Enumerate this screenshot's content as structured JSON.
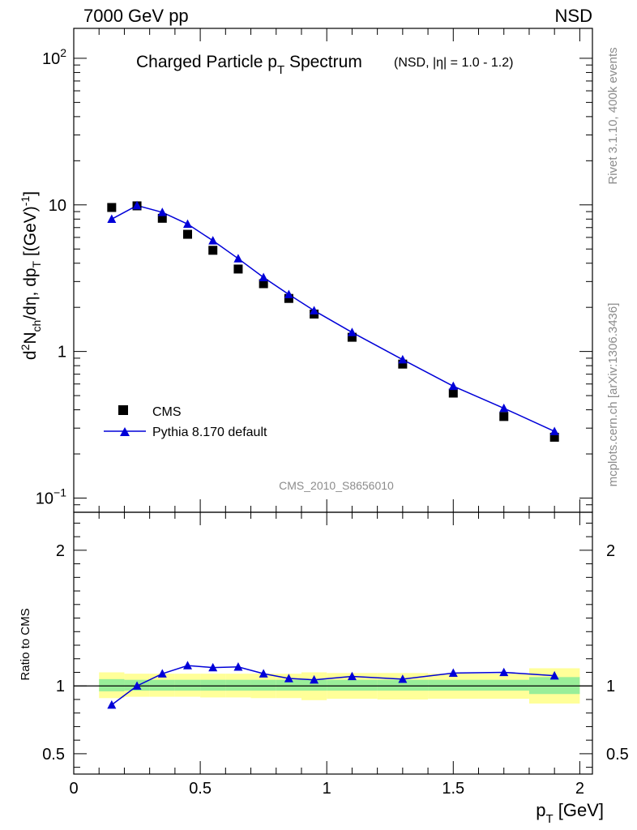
{
  "header": {
    "left": "7000 GeV pp",
    "right": "NSD"
  },
  "side_labels": {
    "rivet": "Rivet 3.1.10,  400k events",
    "mcplots": "mcplots.cern.ch [arXiv:1306.3436]"
  },
  "watermark": "CMS_2010_S8656010",
  "colors": {
    "mc": "#0000d8",
    "data": "#000000",
    "band_inner": "#99ee99",
    "band_outer": "#ffff99"
  },
  "chart_data": [
    {
      "type": "scatter",
      "title": "Charged Particle p_T Spectrum",
      "title_main": "Charged Particle p",
      "title_sub": "T",
      "title_tail": " Spectrum",
      "subtitle": "(NSD, |η| = 1.0 - 1.2)",
      "ylabel": "d²N_ch/dη, dp_T [(GeV)⁻¹]",
      "ylabel_parts": {
        "d": "d",
        "sup2": "2",
        "N": "N",
        "ch": "ch",
        "mid": "/dη, dp",
        "T": "T",
        "br": " [(GeV)",
        "m1": "-1",
        "close": "]"
      },
      "yscale": "log",
      "ylim": [
        0.08,
        160
      ],
      "xlim": [
        0,
        2.05
      ],
      "yticks": [
        {
          "v": 100,
          "base": "10",
          "exp": "2"
        },
        {
          "v": 10,
          "base": "10",
          "exp": ""
        },
        {
          "v": 1,
          "base": "1",
          "exp": ""
        },
        {
          "v": 0.1,
          "base": "10",
          "exp": "−1"
        }
      ],
      "legend": {
        "position": "bottom-left",
        "data_label": "CMS",
        "mc_label": "Pythia 8.170 default"
      },
      "series": [
        {
          "name": "CMS",
          "x": [
            0.15,
            0.25,
            0.35,
            0.45,
            0.55,
            0.65,
            0.75,
            0.85,
            0.95,
            1.1,
            1.3,
            1.5,
            1.7,
            1.9
          ],
          "values": [
            9.6,
            9.85,
            8.1,
            6.3,
            4.9,
            3.65,
            2.9,
            2.3,
            1.8,
            1.25,
            0.82,
            0.52,
            0.36,
            0.26
          ]
        },
        {
          "name": "Pythia 8.170 default",
          "x": [
            0.15,
            0.25,
            0.35,
            0.45,
            0.55,
            0.65,
            0.75,
            0.85,
            0.95,
            1.1,
            1.3,
            1.5,
            1.7,
            1.9
          ],
          "values": [
            8.0,
            9.9,
            8.9,
            7.4,
            5.7,
            4.3,
            3.2,
            2.45,
            1.9,
            1.35,
            0.88,
            0.58,
            0.41,
            0.285
          ]
        }
      ]
    },
    {
      "type": "line",
      "ylabel": "Ratio to CMS",
      "xlabel": "p_T [GeV]",
      "xlabel_main": "p",
      "xlabel_sub": "T",
      "xlabel_tail": " [GeV]",
      "ylim": [
        0.35,
        2.28
      ],
      "xlim": [
        0,
        2.05
      ],
      "yticks": [
        {
          "v": 0.5,
          "label": "0.5"
        },
        {
          "v": 1,
          "label": "1"
        },
        {
          "v": 2,
          "label": "2"
        }
      ],
      "xticks": [
        {
          "v": 0,
          "label": "0"
        },
        {
          "v": 0.5,
          "label": "0.5"
        },
        {
          "v": 1,
          "label": "1"
        },
        {
          "v": 1.5,
          "label": "1.5"
        },
        {
          "v": 2,
          "label": "2"
        }
      ],
      "bands": [
        {
          "x0": 0.1,
          "x1": 0.2,
          "inner": [
            0.96,
            1.05
          ],
          "outer": [
            0.91,
            1.1
          ]
        },
        {
          "x0": 0.2,
          "x1": 0.3,
          "inner": [
            0.965,
            1.045
          ],
          "outer": [
            0.92,
            1.09
          ]
        },
        {
          "x0": 0.3,
          "x1": 0.4,
          "inner": [
            0.965,
            1.045
          ],
          "outer": [
            0.92,
            1.09
          ]
        },
        {
          "x0": 0.4,
          "x1": 0.5,
          "inner": [
            0.965,
            1.045
          ],
          "outer": [
            0.92,
            1.09
          ]
        },
        {
          "x0": 0.5,
          "x1": 0.6,
          "inner": [
            0.965,
            1.045
          ],
          "outer": [
            0.915,
            1.09
          ]
        },
        {
          "x0": 0.6,
          "x1": 0.7,
          "inner": [
            0.965,
            1.045
          ],
          "outer": [
            0.915,
            1.09
          ]
        },
        {
          "x0": 0.7,
          "x1": 0.8,
          "inner": [
            0.965,
            1.045
          ],
          "outer": [
            0.91,
            1.09
          ]
        },
        {
          "x0": 0.8,
          "x1": 0.9,
          "inner": [
            0.965,
            1.045
          ],
          "outer": [
            0.91,
            1.09
          ]
        },
        {
          "x0": 0.9,
          "x1": 1.0,
          "inner": [
            0.965,
            1.045
          ],
          "outer": [
            0.895,
            1.1
          ]
        },
        {
          "x0": 1.0,
          "x1": 1.2,
          "inner": [
            0.965,
            1.045
          ],
          "outer": [
            0.905,
            1.095
          ]
        },
        {
          "x0": 1.2,
          "x1": 1.4,
          "inner": [
            0.965,
            1.045
          ],
          "outer": [
            0.9,
            1.095
          ]
        },
        {
          "x0": 1.4,
          "x1": 1.6,
          "inner": [
            0.965,
            1.045
          ],
          "outer": [
            0.905,
            1.09
          ]
        },
        {
          "x0": 1.6,
          "x1": 1.8,
          "inner": [
            0.965,
            1.045
          ],
          "outer": [
            0.905,
            1.09
          ]
        },
        {
          "x0": 1.8,
          "x1": 2.0,
          "inner": [
            0.94,
            1.065
          ],
          "outer": [
            0.87,
            1.13
          ]
        }
      ],
      "series": [
        {
          "name": "Pythia 8.170 default / CMS",
          "x": [
            0.15,
            0.25,
            0.35,
            0.45,
            0.55,
            0.65,
            0.75,
            0.85,
            0.95,
            1.1,
            1.3,
            1.5,
            1.7,
            1.9
          ],
          "values": [
            0.86,
            1.0,
            1.09,
            1.15,
            1.135,
            1.14,
            1.09,
            1.055,
            1.045,
            1.07,
            1.05,
            1.095,
            1.1,
            1.075
          ]
        }
      ]
    }
  ]
}
